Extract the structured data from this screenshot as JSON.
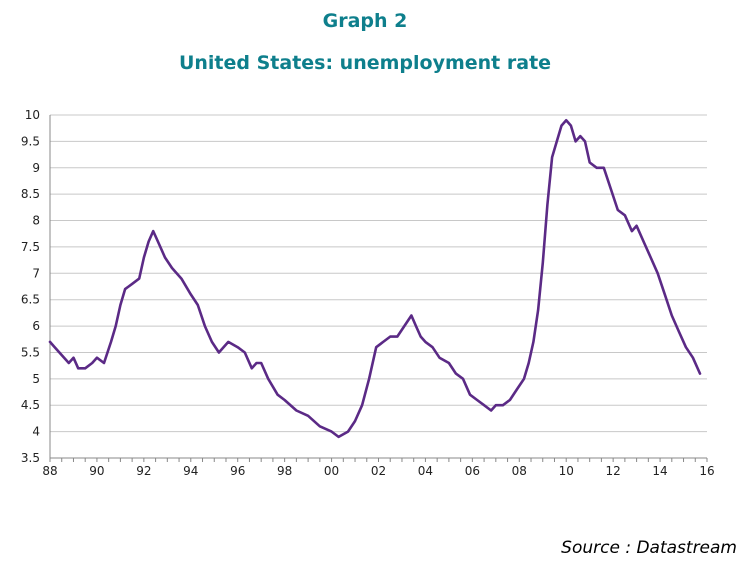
{
  "header": {
    "title": "Graph 2",
    "subtitle": "United States: unemployment rate"
  },
  "footer": {
    "source": "Source : Datastream"
  },
  "chart_data": {
    "type": "line",
    "title": "United States: unemployment rate",
    "xlabel": "",
    "ylabel": "",
    "xlim": [
      1988,
      2016
    ],
    "ylim": [
      3.5,
      10
    ],
    "grid": true,
    "x_tick_labels": [
      "88",
      "90",
      "92",
      "94",
      "96",
      "98",
      "00",
      "02",
      "04",
      "06",
      "08",
      "10",
      "12",
      "14",
      "16"
    ],
    "y_tick_labels": [
      "3.5",
      "4",
      "4.5",
      "5",
      "5.5",
      "6",
      "6.5",
      "7",
      "7.5",
      "8",
      "8.5",
      "9",
      "9.5",
      "10"
    ],
    "colors": {
      "line": "#5b2a86",
      "grid": "#c8c8c8",
      "title": "#0e7f8c"
    },
    "series": [
      {
        "x": [
          1988.0,
          1988.2,
          1988.4,
          1988.6,
          1988.8,
          1989.0,
          1989.2,
          1989.5,
          1989.8,
          1990.0,
          1990.3,
          1990.6,
          1990.8,
          1991.0,
          1991.2,
          1991.5,
          1991.8,
          1992.0,
          1992.2,
          1992.4,
          1992.5,
          1992.7,
          1992.9,
          1993.2,
          1993.6,
          1994.0,
          1994.3,
          1994.6,
          1994.9,
          1995.2,
          1995.6,
          1996.0,
          1996.3,
          1996.6,
          1996.8,
          1997.0,
          1997.3,
          1997.7,
          1998.0,
          1998.5,
          1999.0,
          1999.5,
          2000.0,
          2000.3,
          2000.7,
          2001.0,
          2001.3,
          2001.6,
          2001.9,
          2002.2,
          2002.5,
          2002.8,
          2003.1,
          2003.4,
          2003.6,
          2003.8,
          2004.0,
          2004.3,
          2004.6,
          2005.0,
          2005.3,
          2005.6,
          2005.9,
          2006.2,
          2006.5,
          2006.8,
          2007.0,
          2007.3,
          2007.6,
          2007.9,
          2008.2,
          2008.4,
          2008.6,
          2008.8,
          2009.0,
          2009.2,
          2009.4,
          2009.6,
          2009.8,
          2010.0,
          2010.2,
          2010.4,
          2010.6,
          2010.8,
          2011.0,
          2011.3,
          2011.6,
          2011.9,
          2012.2,
          2012.5,
          2012.8,
          2013.0,
          2013.3,
          2013.6,
          2013.9,
          2014.2,
          2014.5,
          2014.8,
          2015.1,
          2015.4,
          2015.7
        ],
        "y": [
          5.7,
          5.6,
          5.5,
          5.4,
          5.3,
          5.4,
          5.2,
          5.2,
          5.3,
          5.4,
          5.3,
          5.7,
          6.0,
          6.4,
          6.7,
          6.8,
          6.9,
          7.3,
          7.6,
          7.8,
          7.7,
          7.5,
          7.3,
          7.1,
          6.9,
          6.6,
          6.4,
          6.0,
          5.7,
          5.5,
          5.7,
          5.6,
          5.5,
          5.2,
          5.3,
          5.3,
          5.0,
          4.7,
          4.6,
          4.4,
          4.3,
          4.1,
          4.0,
          3.9,
          4.0,
          4.2,
          4.5,
          5.0,
          5.6,
          5.7,
          5.8,
          5.8,
          6.0,
          6.2,
          6.0,
          5.8,
          5.7,
          5.6,
          5.4,
          5.3,
          5.1,
          5.0,
          4.7,
          4.6,
          4.5,
          4.4,
          4.5,
          4.5,
          4.6,
          4.8,
          5.0,
          5.3,
          5.7,
          6.3,
          7.2,
          8.3,
          9.2,
          9.5,
          9.8,
          9.9,
          9.8,
          9.5,
          9.6,
          9.5,
          9.1,
          9.0,
          9.0,
          8.6,
          8.2,
          8.1,
          7.8,
          7.9,
          7.6,
          7.3,
          7.0,
          6.6,
          6.2,
          5.9,
          5.6,
          5.4,
          5.1
        ]
      }
    ]
  }
}
